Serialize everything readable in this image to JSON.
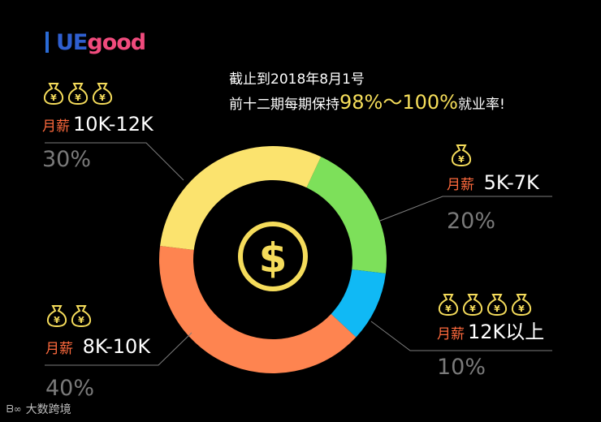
{
  "brand": {
    "logo_ue": "UE",
    "logo_good": "good",
    "logo_color": "#2f5fd0",
    "logo_accent": "#f04b7d"
  },
  "header": {
    "line1": "截止到2018年8月1号",
    "line2_prefix": "前十二期每期保持",
    "line2_highlight": "98%～100%",
    "line2_suffix": "就业率!"
  },
  "chart_data": {
    "type": "pie",
    "donut": true,
    "center_icon": "dollar-coin-icon",
    "slices": [
      {
        "prefix": "月薪",
        "label": "5K-7K",
        "value": 20,
        "percent_text": "20%",
        "color": "#7de05a",
        "bags": 1
      },
      {
        "prefix": "月薪",
        "label": "12K以上",
        "value": 10,
        "percent_text": "10%",
        "color": "#10b9f5",
        "bags": 4
      },
      {
        "prefix": "月薪",
        "label": "8K-10K",
        "value": 40,
        "percent_text": "40%",
        "color": "#fe8450",
        "bags": 2
      },
      {
        "prefix": "月薪",
        "label": "10K-12K",
        "value": 30,
        "percent_text": "30%",
        "color": "#fbe36e",
        "bags": 3
      }
    ]
  },
  "watermark": {
    "text": "大数跨境"
  }
}
